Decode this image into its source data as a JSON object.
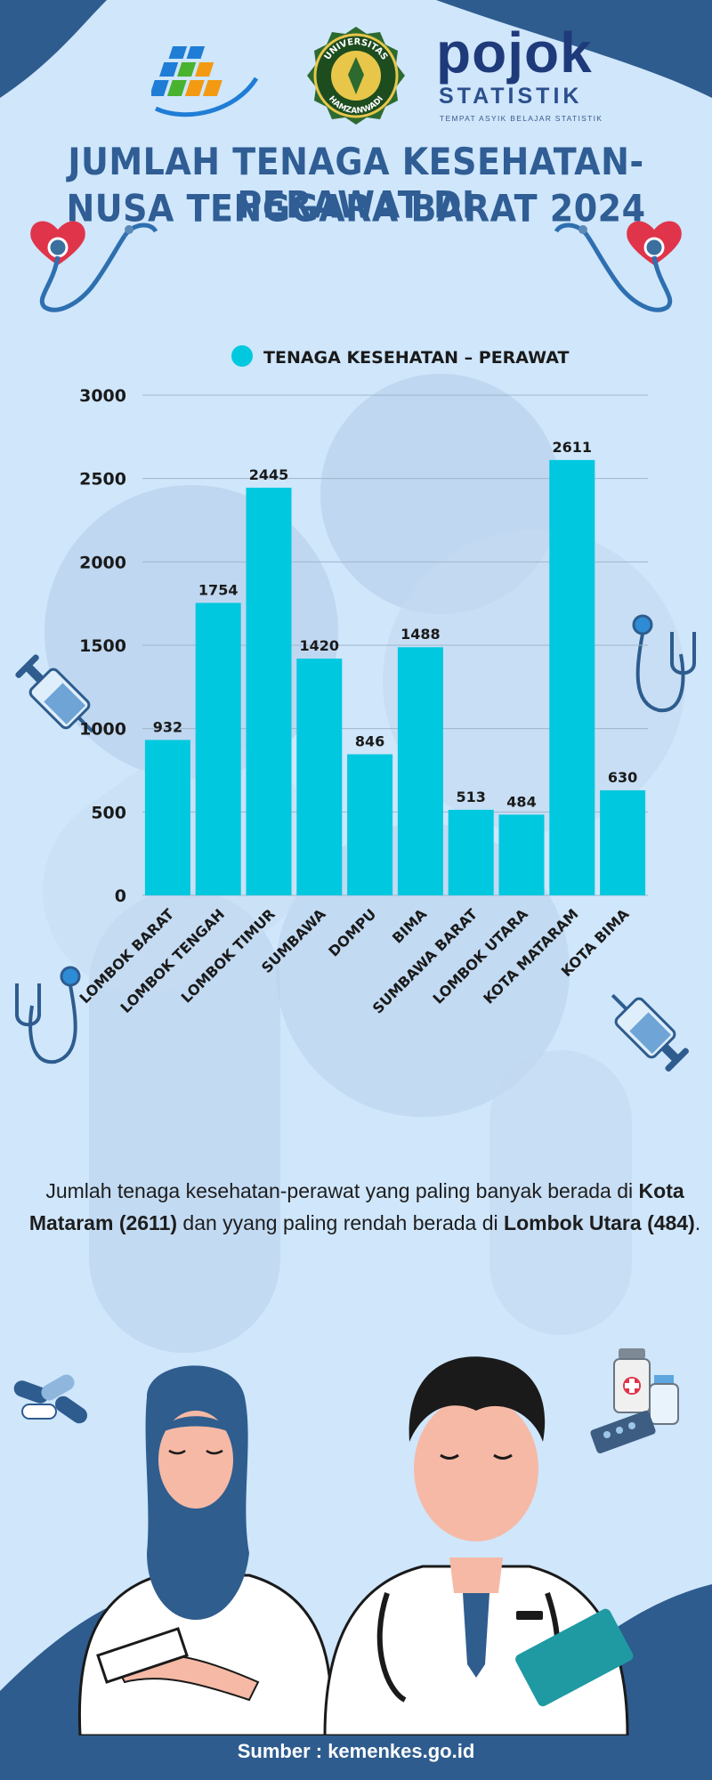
{
  "header": {
    "title_line1": "JUMLAH TENAGA KESEHATAN-PERAWAT DI",
    "title_line2": "NUSA TENGGARA BARAT 2024",
    "logo_university_top": "UNIVERSITAS",
    "logo_university_bottom": "HAMZANWADI",
    "logo_pojok": "pojok",
    "logo_statistik": "STATISTIK",
    "logo_tagline": "TEMPAT ASYIK BELAJAR STATISTIK"
  },
  "colors": {
    "background": "#cfe6fb",
    "bar": "#00c8df",
    "title": "#2f5d94",
    "dark_blue": "#2b5f91"
  },
  "chart_data": {
    "type": "bar",
    "title": "",
    "legend": "TENAGA KESEHATAN – PERAWAT",
    "categories": [
      "LOMBOK BARAT",
      "LOMBOK TENGAH",
      "LOMBOK TIMUR",
      "SUMBAWA",
      "DOMPU",
      "BIMA",
      "SUMBAWA BARAT",
      "LOMBOK UTARA",
      "KOTA MATARAM",
      "KOTA BIMA"
    ],
    "series": [
      {
        "name": "TENAGA KESEHATAN – PERAWAT",
        "values": [
          932,
          1754,
          2445,
          1420,
          846,
          1488,
          513,
          484,
          2611,
          630
        ]
      }
    ],
    "y_ticks": [
      0,
      500,
      1000,
      1500,
      2000,
      2500,
      3000
    ],
    "ylim": [
      0,
      3000
    ],
    "xlabel": "",
    "ylabel": "",
    "grid": true
  },
  "summary": {
    "part1": "Jumlah tenaga kesehatan-perawat yang paling banyak berada di ",
    "highlight1": "Kota Mataram (2611)",
    "part2": " dan yyang paling rendah berada di ",
    "highlight2": "Lombok Utara (484)",
    "part3": "."
  },
  "footer": {
    "source": "Sumber : kemenkes.go.id"
  }
}
